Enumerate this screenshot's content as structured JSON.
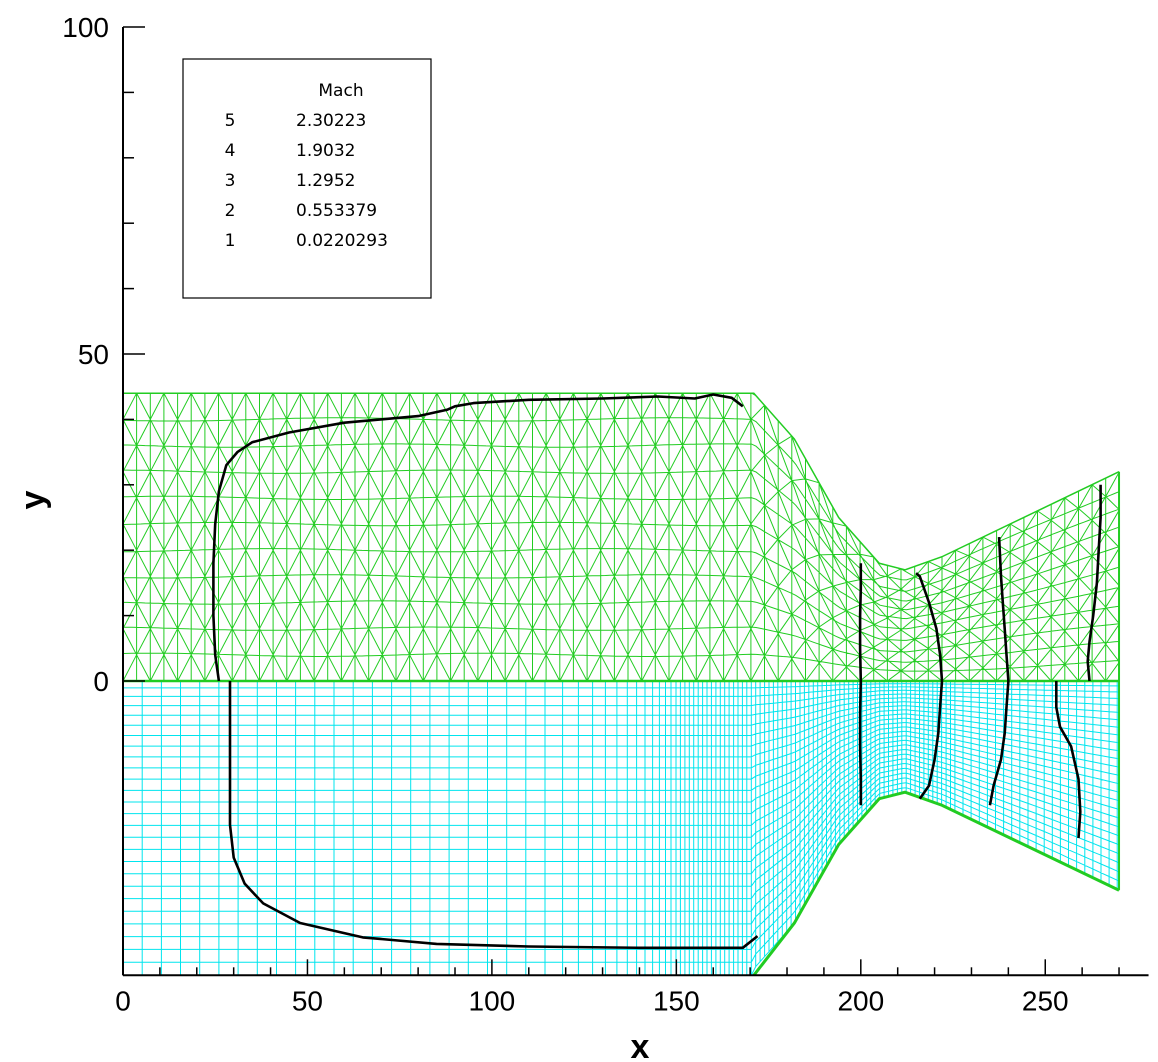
{
  "chart_data": {
    "type": "contour",
    "xlabel": "x",
    "ylabel": "y",
    "xlim": [
      0,
      278
    ],
    "ylim": [
      -45,
      100
    ],
    "x_ticks": [
      0,
      50,
      100,
      150,
      200,
      250
    ],
    "x_tick_labels": [
      "0",
      "50",
      "100",
      "150",
      "200",
      "250"
    ],
    "y_ticks": [
      0,
      50,
      100
    ],
    "y_tick_labels": [
      "0",
      "50",
      "100"
    ],
    "x_minor_step": 10,
    "y_minor_step": 10,
    "colors": {
      "triangular_mesh": "#22cc22",
      "structured_mesh": "#00e5ee",
      "contour": "#000000"
    },
    "legend": {
      "title": "Mach",
      "placement": "top-left",
      "entries": [
        {
          "level": "5",
          "value": "2.30223"
        },
        {
          "level": "4",
          "value": "1.9032"
        },
        {
          "level": "3",
          "value": "1.2952"
        },
        {
          "level": "2",
          "value": "0.553379"
        },
        {
          "level": "1",
          "value": "0.0220293"
        }
      ]
    },
    "nozzle_wall": [
      [
        0,
        44
      ],
      [
        171,
        44
      ],
      [
        182,
        37
      ],
      [
        194,
        25
      ],
      [
        205,
        18
      ],
      [
        212,
        17
      ],
      [
        222,
        19
      ],
      [
        270,
        32
      ]
    ],
    "upper_contours": [
      {
        "points": [
          [
            26,
            0
          ],
          [
            25,
            4
          ],
          [
            24.5,
            10
          ],
          [
            24.5,
            18
          ],
          [
            25,
            24
          ],
          [
            26,
            29
          ],
          [
            28,
            33
          ],
          [
            31,
            35
          ],
          [
            35,
            36.5
          ],
          [
            45,
            38
          ],
          [
            60,
            39.5
          ],
          [
            80,
            40.5
          ],
          [
            88,
            41.5
          ],
          [
            90,
            42
          ],
          [
            95,
            42.5
          ],
          [
            110,
            43
          ],
          [
            130,
            43.2
          ],
          [
            145,
            43.5
          ],
          [
            155,
            43.2
          ],
          [
            160,
            43.8
          ],
          [
            165,
            43.3
          ],
          [
            168,
            42
          ]
        ]
      },
      {
        "points": [
          [
            200,
            0
          ],
          [
            199.8,
            5
          ],
          [
            199.8,
            10
          ],
          [
            200,
            14
          ],
          [
            200,
            18
          ]
        ]
      },
      {
        "points": [
          [
            222,
            0
          ],
          [
            221.5,
            4
          ],
          [
            220.5,
            8
          ],
          [
            218.5,
            12
          ],
          [
            216,
            16
          ],
          [
            215,
            16.5
          ]
        ]
      },
      {
        "points": [
          [
            240,
            0
          ],
          [
            239.5,
            4
          ],
          [
            239,
            8
          ],
          [
            238.5,
            12
          ],
          [
            238,
            16
          ],
          [
            237.5,
            22
          ]
        ]
      },
      {
        "points": [
          [
            262,
            0
          ],
          [
            261.5,
            3
          ],
          [
            262,
            6
          ],
          [
            263,
            10
          ],
          [
            264,
            15
          ],
          [
            264.5,
            20
          ],
          [
            265,
            25
          ],
          [
            265,
            30
          ]
        ]
      }
    ],
    "lower_contours": [
      {
        "points": [
          [
            29,
            0
          ],
          [
            29,
            -5
          ],
          [
            29,
            -15
          ],
          [
            29,
            -22
          ],
          [
            30,
            -27
          ],
          [
            33,
            -31
          ],
          [
            38,
            -34
          ],
          [
            48,
            -37
          ],
          [
            65,
            -39.2
          ],
          [
            85,
            -40.2
          ],
          [
            110,
            -40.6
          ],
          [
            140,
            -40.8
          ],
          [
            168,
            -40.8
          ],
          [
            172,
            -39
          ]
        ]
      },
      {
        "points": [
          [
            200,
            0
          ],
          [
            199.8,
            -5
          ],
          [
            199.8,
            -10
          ],
          [
            200,
            -15
          ],
          [
            200,
            -19
          ]
        ]
      },
      {
        "points": [
          [
            222,
            0
          ],
          [
            221.5,
            -4
          ],
          [
            221,
            -8
          ],
          [
            220,
            -12
          ],
          [
            218.5,
            -16
          ],
          [
            216,
            -18
          ]
        ]
      },
      {
        "points": [
          [
            240,
            0
          ],
          [
            239.5,
            -4
          ],
          [
            239,
            -8
          ],
          [
            238,
            -12
          ],
          [
            236,
            -16
          ],
          [
            235,
            -19
          ]
        ]
      },
      {
        "points": [
          [
            253,
            0
          ],
          [
            253,
            -4
          ],
          [
            254,
            -7
          ],
          [
            257,
            -10
          ],
          [
            259,
            -15
          ],
          [
            259.5,
            -20
          ],
          [
            259,
            -24
          ]
        ]
      }
    ]
  }
}
